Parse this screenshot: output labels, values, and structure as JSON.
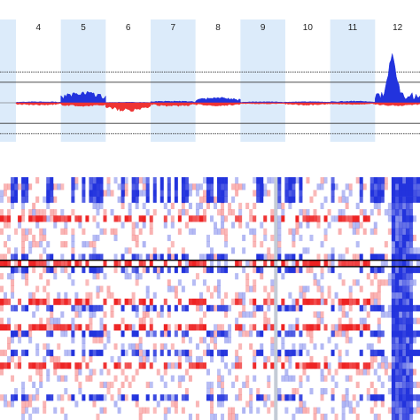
{
  "chart_data": [
    {
      "type": "area",
      "title": "",
      "xlabel": "",
      "ylabel": "",
      "grid": false,
      "legend": "none",
      "categories": [
        "4",
        "5",
        "6",
        "7",
        "8",
        "9",
        "10",
        "11",
        "12"
      ],
      "colors": {
        "gain": "#2233dd",
        "loss": "#ee3333",
        "band_shaded": "#dcebfa",
        "reference_line": "#333333"
      },
      "shaded_categories": [
        "5",
        "7",
        "9",
        "11"
      ],
      "ylim": [
        -1,
        1
      ],
      "reference_lines": [
        0.6,
        0.4,
        -0.4,
        -0.6
      ],
      "series": [
        {
          "values": [
            0.02,
            0.18,
            0.01,
            0.03,
            0.09,
            0.02,
            0.02,
            0.03,
            0.78
          ]
        },
        {
          "values": [
            -0.04,
            -0.06,
            -0.14,
            -0.06,
            -0.05,
            -0.02,
            -0.04,
            -0.03,
            -0.05
          ]
        }
      ]
    },
    {
      "type": "heatmap",
      "title": "",
      "xlabel": "",
      "ylabel": "",
      "legend": "none",
      "categories": [
        "4",
        "5",
        "6",
        "7",
        "8",
        "9",
        "10",
        "11",
        "12"
      ],
      "colors": {
        "gain": "#2233dd",
        "loss": "#ee2222",
        "neutral": "#ffffff",
        "divider": "#000000"
      },
      "rows": 38,
      "highlight_rows": [
        13
      ],
      "seed": 12
    }
  ]
}
